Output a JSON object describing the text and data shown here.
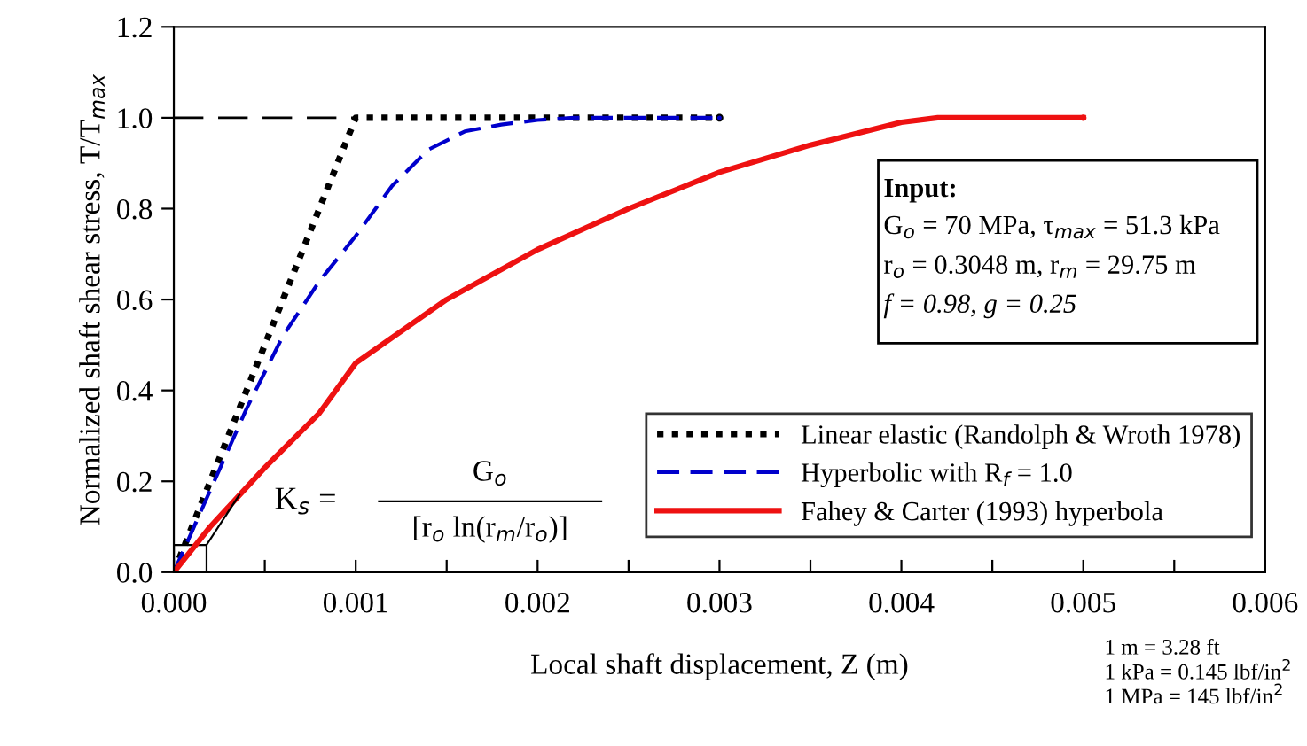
{
  "chart_data": {
    "type": "line",
    "xlabel": "Local shaft displacement, Z (m)",
    "ylabel": "Normalized shaft shear stress, T/T$_{max}$",
    "xlim": [
      0,
      0.006
    ],
    "ylim": [
      0,
      1.2
    ],
    "xticks": [
      {
        "value": 0,
        "label": "0.000"
      },
      {
        "value": 0.0005,
        "label": null
      },
      {
        "value": 0.001,
        "label": "0.001"
      },
      {
        "value": 0.0015,
        "label": null
      },
      {
        "value": 0.002,
        "label": "0.002"
      },
      {
        "value": 0.0025,
        "label": null
      },
      {
        "value": 0.003,
        "label": "0.003"
      },
      {
        "value": 0.0035,
        "label": null
      },
      {
        "value": 0.004,
        "label": "0.004"
      },
      {
        "value": 0.0045,
        "label": null
      },
      {
        "value": 0.005,
        "label": "0.005"
      },
      {
        "value": 0.0055,
        "label": null
      },
      {
        "value": 0.006,
        "label": "0.006"
      }
    ],
    "yticks": [
      {
        "value": 0,
        "label": "0.0"
      },
      {
        "value": 0.2,
        "label": "0.2"
      },
      {
        "value": 0.4,
        "label": "0.4"
      },
      {
        "value": 0.6,
        "label": "0.6"
      },
      {
        "value": 0.8,
        "label": "0.8"
      },
      {
        "value": 1.0,
        "label": "1.0"
      },
      {
        "value": 1.2,
        "label": "1.2"
      }
    ],
    "grid": false,
    "legend": "bottom right",
    "series": [
      {
        "color": "#000000",
        "line_style": "dashed",
        "x": [
          0,
          0.001
        ],
        "values": [
          1.0,
          1.0
        ]
      },
      {
        "name": "Linear elastic (Randolph & Wroth 1978)",
        "color": "#000000",
        "line_style": "dotted",
        "x": [
          0,
          0.001,
          0.003
        ],
        "values": [
          0,
          1.0,
          1.0
        ]
      },
      {
        "name": "Hyperbolic with R$_{f}$ = 1.0",
        "color": "#0000cc",
        "line_style": "dashed",
        "x": [
          0,
          0.0002,
          0.0004,
          0.0006,
          0.0008,
          0.001,
          0.0012,
          0.0014,
          0.0016,
          0.0018,
          0.002,
          0.0022,
          0.003
        ],
        "values": [
          0,
          0.18,
          0.36,
          0.52,
          0.64,
          0.74,
          0.85,
          0.93,
          0.97,
          0.985,
          0.995,
          1.0,
          1.0
        ]
      },
      {
        "name": "Fahey & Carter (1993) hyperbola",
        "color": "#ee1111",
        "line_style": "solid",
        "x": [
          0,
          0.0002,
          0.0005,
          0.0008,
          0.001,
          0.0015,
          0.002,
          0.0025,
          0.003,
          0.0035,
          0.004,
          0.0042,
          0.005
        ],
        "values": [
          0,
          0.1,
          0.23,
          0.35,
          0.46,
          0.6,
          0.71,
          0.8,
          0.88,
          0.94,
          0.99,
          1.0,
          1.0
        ]
      }
    ],
    "annotations": [
      "K$_{s}$ =",
      "G$_{o}$",
      "[r$_{o}$ ln(r$_{m}$/r$_{o}$)]",
      "Input:",
      "G$_{o}$ = 70 MPa, τ$_{max}$ = 51.3 kPa",
      "r$_{o}$ = 0.3048 m, r$_{m}$ = 29.75 m",
      "f = 0.98, g = 0.25",
      "1 m = 3.28 ft",
      "1 kPa = 0.145 lbf/in$^{2}$",
      "1 MPa = 145 lbf/in$^{2}$"
    ]
  }
}
